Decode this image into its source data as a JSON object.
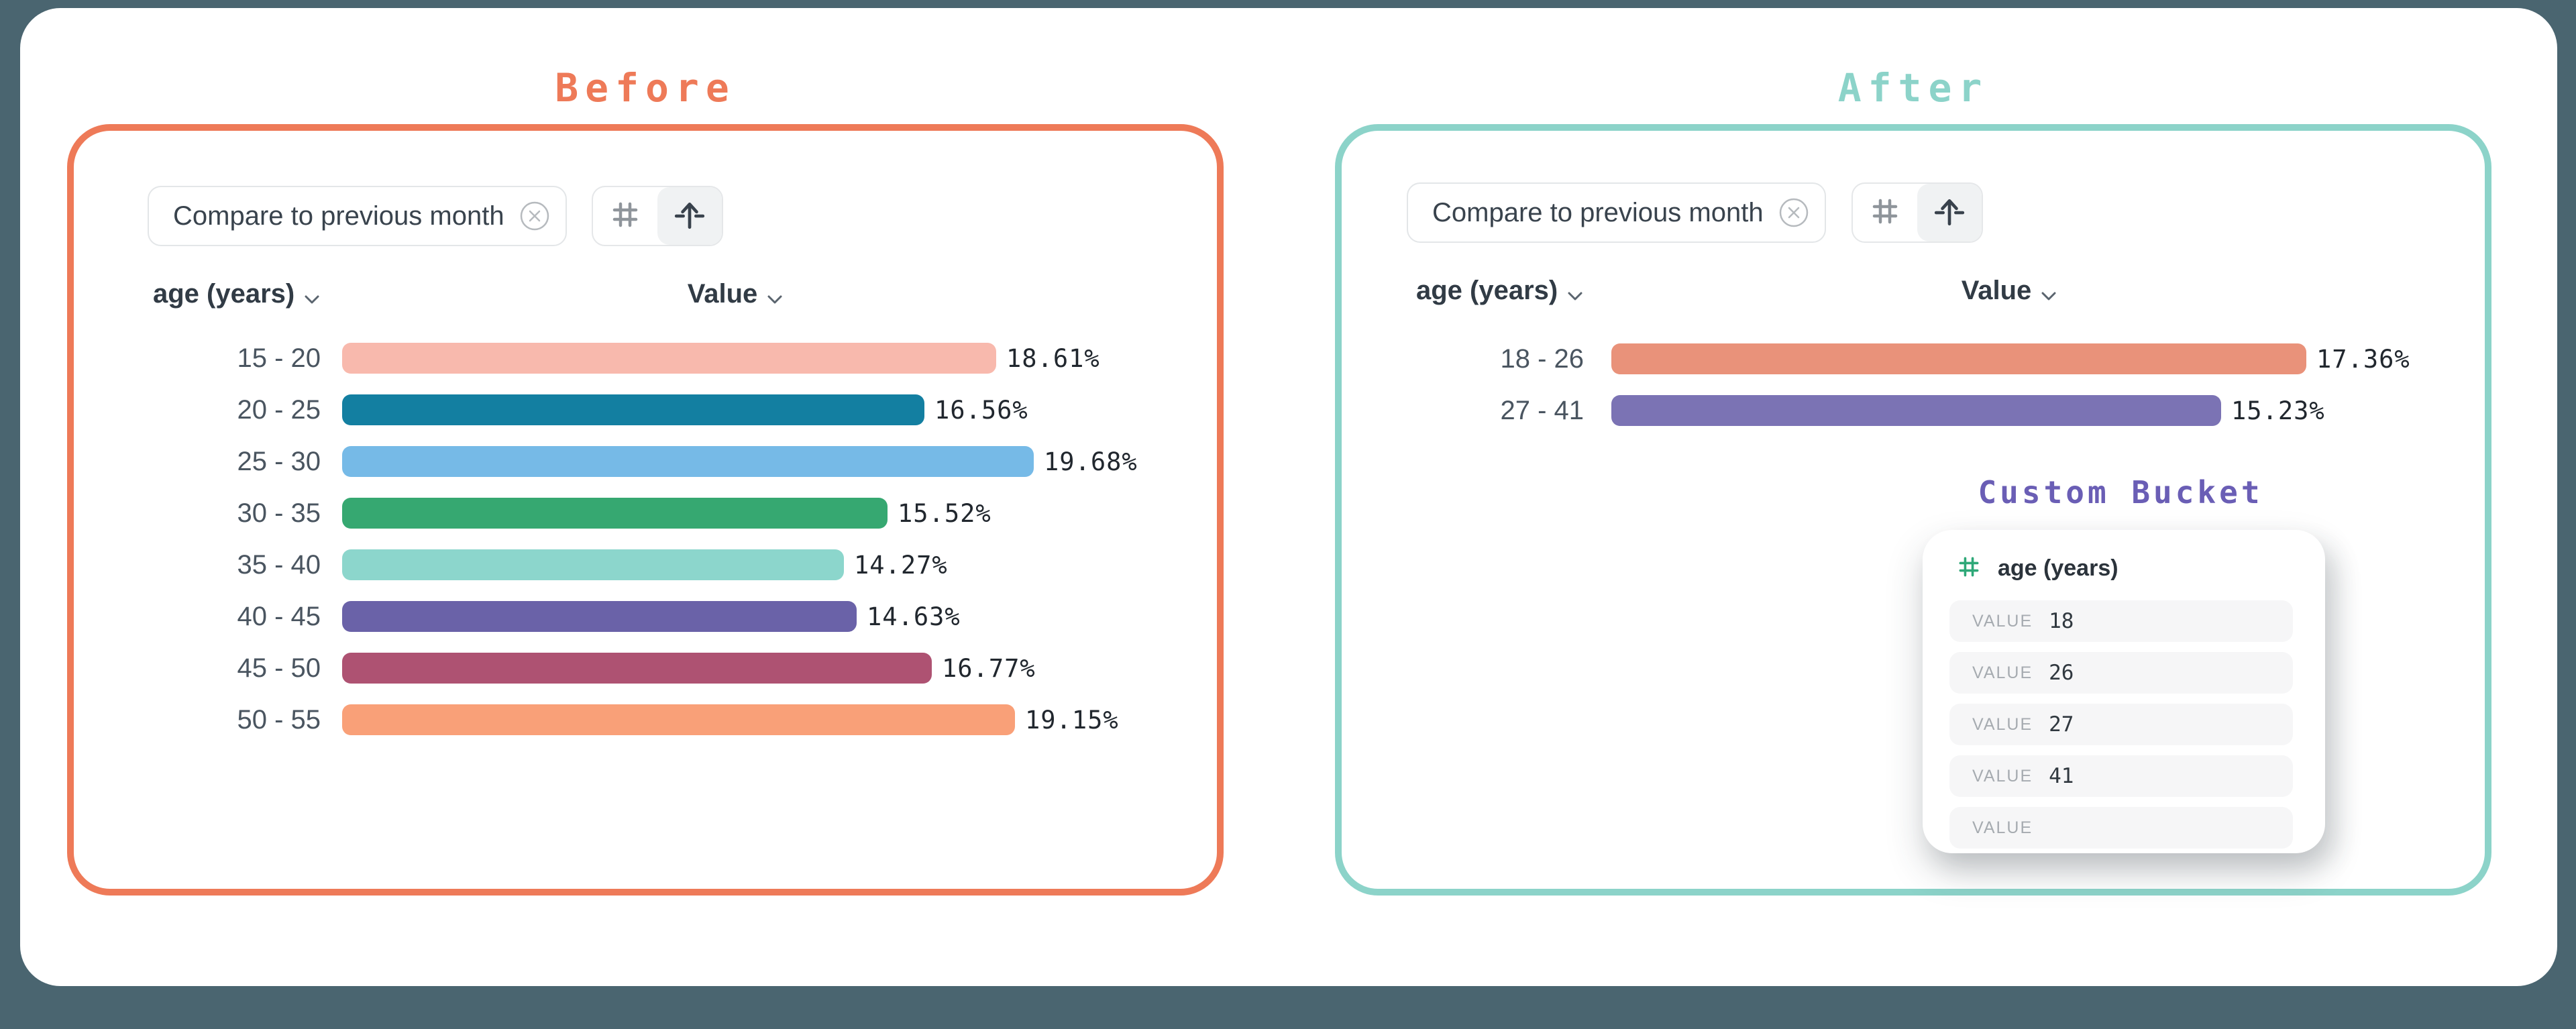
{
  "colors": {
    "page_background": "#4A6570",
    "card_background": "#FFFFFF",
    "before_accent": "#EE7A58",
    "after_accent": "#8CD3C9",
    "custom_bucket_accent": "#6A5EB5",
    "hash_green": "#2EA878"
  },
  "before": {
    "title": "Before",
    "chip_label": "Compare to previous month",
    "dimension_header": "age (years)",
    "value_header": "Value",
    "bars": [
      {
        "label": "15 - 20",
        "value": 18.61,
        "display": "18.61%",
        "color": "#F8B9AD"
      },
      {
        "label": "20 - 25",
        "value": 16.56,
        "display": "16.56%",
        "color": "#137FA1"
      },
      {
        "label": "25 - 30",
        "value": 19.68,
        "display": "19.68%",
        "color": "#76BAE7"
      },
      {
        "label": "30 - 35",
        "value": 15.52,
        "display": "15.52%",
        "color": "#36A871"
      },
      {
        "label": "35 - 40",
        "value": 14.27,
        "display": "14.27%",
        "color": "#8CD6CC"
      },
      {
        "label": "40 - 45",
        "value": 14.63,
        "display": "14.63%",
        "color": "#6A62A8"
      },
      {
        "label": "45 - 50",
        "value": 16.77,
        "display": "16.77%",
        "color": "#AE5272"
      },
      {
        "label": "50 - 55",
        "value": 19.15,
        "display": "19.15%",
        "color": "#F9A078"
      }
    ]
  },
  "after": {
    "title": "After",
    "chip_label": "Compare to previous month",
    "dimension_header": "age (years)",
    "value_header": "Value",
    "bars": [
      {
        "label": "18 - 26",
        "value": 17.36,
        "display": "17.36%",
        "color": "#E9927A"
      },
      {
        "label": "27 - 41",
        "value": 15.23,
        "display": "15.23%",
        "color": "#7B73B4"
      }
    ]
  },
  "custom_bucket": {
    "title": "Custom Bucket",
    "field": "age (years)",
    "rows": [
      {
        "label": "VALUE",
        "value": "18"
      },
      {
        "label": "VALUE",
        "value": "26"
      },
      {
        "label": "VALUE",
        "value": "27"
      },
      {
        "label": "VALUE",
        "value": "41"
      },
      {
        "label": "VALUE",
        "value": ""
      }
    ]
  },
  "chart_data": [
    {
      "type": "bar",
      "title": "Before",
      "orientation": "horizontal",
      "categories": [
        "15 - 20",
        "20 - 25",
        "25 - 30",
        "30 - 35",
        "35 - 40",
        "40 - 45",
        "45 - 50",
        "50 - 55"
      ],
      "values": [
        18.61,
        16.56,
        19.68,
        15.52,
        14.27,
        14.63,
        16.77,
        19.15
      ],
      "xlabel": "Value",
      "ylabel": "age (years)",
      "unit": "%",
      "legend": false,
      "grid": false
    },
    {
      "type": "bar",
      "title": "After",
      "orientation": "horizontal",
      "categories": [
        "18 - 26",
        "27 - 41"
      ],
      "values": [
        17.36,
        15.23
      ],
      "xlabel": "Value",
      "ylabel": "age (years)",
      "unit": "%",
      "legend": false,
      "grid": false
    }
  ]
}
